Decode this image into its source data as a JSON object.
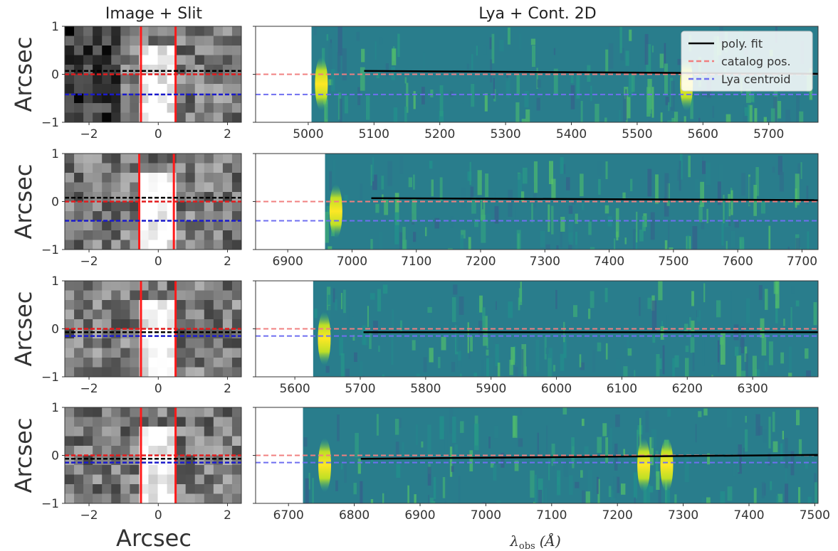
{
  "titles": {
    "left": "Image + Slit",
    "right": "Lya + Cont. 2D"
  },
  "xlabels": {
    "left": "Arcsec",
    "right": "λ"
  },
  "xlabel_right_sub": "obs",
  "xlabel_right_unit": "(Å)",
  "ylabel": "Arcsec",
  "legend": [
    {
      "label": "poly. fit",
      "color": "#000000",
      "style": "solid"
    },
    {
      "label": "catalog pos.",
      "color": "#f08080",
      "style": "dashed"
    },
    {
      "label": "Lya centroid",
      "color": "#6f6ff0",
      "style": "dashed"
    }
  ],
  "colors": {
    "viridis_low": "#3b4a8c",
    "viridis_mid": "#21918c",
    "viridis_high": "#fde725",
    "slit": "#ff1a1a",
    "catalog_line": "#e31a1c",
    "centroid_line": "#1a1acc"
  },
  "chart_data": [
    {
      "type": "heatmap",
      "panel": "image",
      "row": 1,
      "xlim": [
        -2.7,
        2.4
      ],
      "ylim": [
        -1,
        1
      ],
      "xticks": [
        -2,
        0,
        2
      ],
      "yticks": [
        -1,
        0,
        1
      ],
      "xticklabels": [
        "−2",
        "0",
        "2"
      ],
      "yticklabels": [
        "−1",
        "0",
        "1"
      ],
      "slit_x": [
        -0.5,
        0.5
      ],
      "catalog_y": 0.0,
      "fit_y": 0.07,
      "centroid_y": -0.42
    },
    {
      "type": "heatmap",
      "panel": "spectrum",
      "row": 1,
      "xlim": [
        4920,
        5775
      ],
      "data_start": 5005,
      "ylim": [
        -1,
        1
      ],
      "xticks": [
        5000,
        5100,
        5200,
        5300,
        5400,
        5500,
        5600,
        5700
      ],
      "catalog_y": 0.0,
      "centroid_y": -0.42,
      "fit": {
        "x": [
          5085,
          5775
        ],
        "y": [
          0.07,
          0.01
        ]
      },
      "bright_features": [
        5020,
        5575
      ],
      "legend": "top-right"
    },
    {
      "type": "heatmap",
      "panel": "image",
      "row": 2,
      "xlim": [
        -2.7,
        2.4
      ],
      "ylim": [
        -1,
        1
      ],
      "xticks": [
        -2,
        0,
        2
      ],
      "yticks": [
        -1,
        0,
        1
      ],
      "xticklabels": [
        "−2",
        "0",
        "2"
      ],
      "yticklabels": [
        "−1",
        "0",
        "1"
      ],
      "slit_x": [
        -0.55,
        0.45
      ],
      "catalog_y": 0.0,
      "fit_y": 0.08,
      "centroid_y": -0.4
    },
    {
      "type": "heatmap",
      "panel": "spectrum",
      "row": 2,
      "xlim": [
        6850,
        7725
      ],
      "data_start": 6958,
      "ylim": [
        -1,
        1
      ],
      "xticks": [
        6900,
        7000,
        7100,
        7200,
        7300,
        7400,
        7500,
        7600,
        7700
      ],
      "catalog_y": 0.0,
      "centroid_y": -0.4,
      "fit": {
        "x": [
          7030,
          7725
        ],
        "y": [
          0.07,
          0.03
        ]
      },
      "bright_features": [
        6975
      ]
    },
    {
      "type": "heatmap",
      "panel": "image",
      "row": 3,
      "xlim": [
        -2.7,
        2.4
      ],
      "ylim": [
        -1,
        1
      ],
      "xticks": [
        -2,
        0,
        2
      ],
      "yticks": [
        -1,
        0,
        1
      ],
      "xticklabels": [
        "−2",
        "0",
        "2"
      ],
      "yticklabels": [
        "−1",
        "0",
        "1"
      ],
      "slit_x": [
        -0.5,
        0.5
      ],
      "catalog_y": 0.0,
      "fit_y": -0.07,
      "centroid_y": -0.15
    },
    {
      "type": "heatmap",
      "panel": "spectrum",
      "row": 3,
      "xlim": [
        5540,
        6400
      ],
      "data_start": 5628,
      "ylim": [
        -1,
        1
      ],
      "xticks": [
        5600,
        5700,
        5800,
        5900,
        6000,
        6100,
        6200,
        6300
      ],
      "catalog_y": 0.0,
      "centroid_y": -0.15,
      "fit": {
        "x": [
          5705,
          6400
        ],
        "y": [
          -0.07,
          -0.07
        ]
      },
      "bright_features": [
        5645
      ]
    },
    {
      "type": "heatmap",
      "panel": "image",
      "row": 4,
      "xlim": [
        -2.7,
        2.4
      ],
      "ylim": [
        -1,
        1
      ],
      "xticks": [
        -2,
        0,
        2
      ],
      "yticks": [
        -1,
        0,
        1
      ],
      "xticklabels": [
        "−2",
        "0",
        "2"
      ],
      "yticklabels": [
        "−1",
        "0",
        "1"
      ],
      "slit_x": [
        -0.5,
        0.5
      ],
      "catalog_y": 0.0,
      "fit_y": -0.07,
      "centroid_y": -0.15
    },
    {
      "type": "heatmap",
      "panel": "spectrum",
      "row": 4,
      "xlim": [
        6650,
        7505
      ],
      "data_start": 6722,
      "ylim": [
        -1,
        1
      ],
      "xticks": [
        6700,
        6800,
        6900,
        7000,
        7100,
        7200,
        7300,
        7400,
        7500
      ],
      "catalog_y": 0.0,
      "centroid_y": -0.15,
      "fit": {
        "x": [
          6810,
          7505
        ],
        "y": [
          -0.07,
          0.01
        ]
      },
      "bright_features": [
        6755,
        7240,
        7275
      ]
    }
  ]
}
